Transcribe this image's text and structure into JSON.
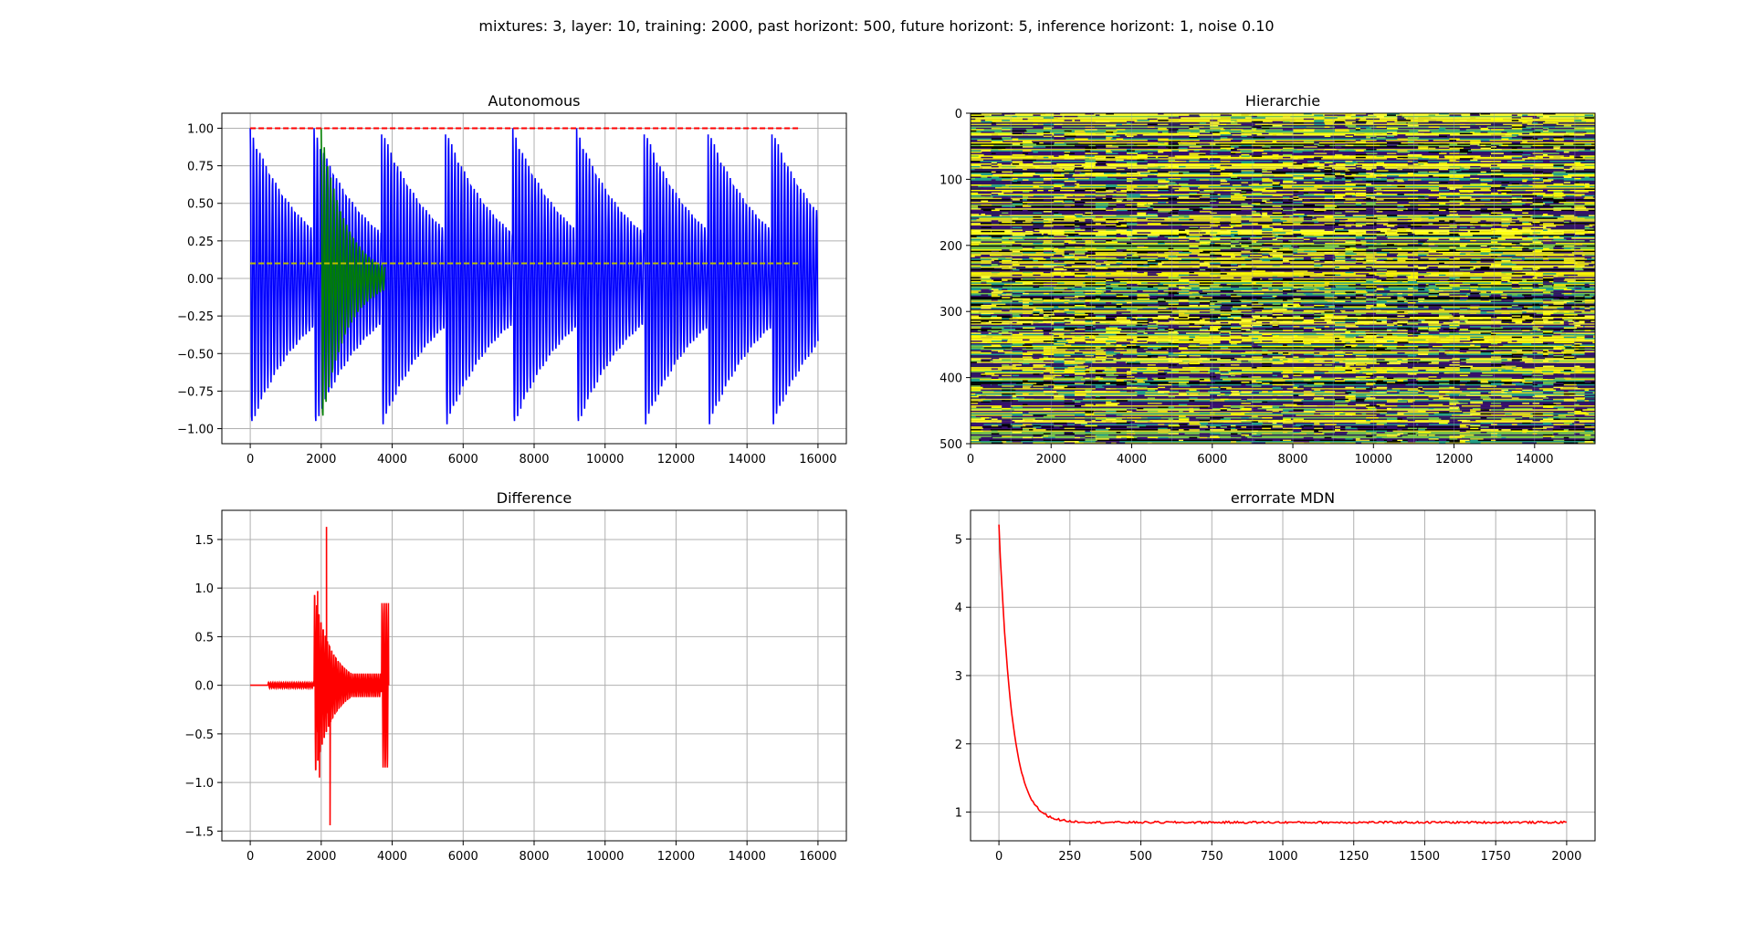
{
  "figure": {
    "suptitle": "mixtures: 3, layer: 10, training: 2000, past horizont: 500, future horizont: 5, inference horizont: 1, noise 0.10"
  },
  "colors": {
    "blue": "#0000ff",
    "green": "#008000",
    "red": "#ff0000",
    "yellow": "#bfbf00",
    "grid": "#b0b0b0"
  },
  "chart_data": [
    {
      "id": "autonomous",
      "type": "line",
      "title": "Autonomous",
      "xlabel": "",
      "ylabel": "",
      "xlim": [
        -800,
        16800
      ],
      "ylim": [
        -1.1,
        1.1
      ],
      "xticks": [
        0,
        2000,
        4000,
        6000,
        8000,
        10000,
        12000,
        14000,
        16000
      ],
      "yticks": [
        -1.0,
        -0.75,
        -0.5,
        -0.25,
        0.0,
        0.25,
        0.5,
        0.75,
        1.0
      ],
      "ytick_labels": [
        "−1.00",
        "−0.75",
        "−0.50",
        "−0.25",
        "0.00",
        "0.25",
        "0.50",
        "0.75",
        "1.00"
      ],
      "grid": true,
      "series": [
        {
          "color": "#0000ff",
          "kind": "decaying_bursts",
          "bursts": [
            0,
            1800,
            3700,
            5500,
            7400,
            9200,
            11100,
            12900,
            14700
          ],
          "x_end": 16000,
          "amplitude": 1.0,
          "period": 90,
          "decay": 1600,
          "floor": 0.05
        },
        {
          "color": "#008000",
          "kind": "decaying_bursts",
          "bursts": [
            2000
          ],
          "x_end": 3800,
          "amplitude": 1.0,
          "period": 90,
          "decay": 700,
          "floor": 0.0
        },
        {
          "color": "#ff0000",
          "kind": "dashed",
          "x": [
            0,
            15500
          ],
          "y": [
            1.0,
            1.0
          ]
        },
        {
          "color": "#bfbf00",
          "kind": "dashed",
          "x": [
            0,
            15500
          ],
          "y": [
            0.1,
            0.1
          ]
        }
      ]
    },
    {
      "id": "hierarchie",
      "type": "heatmap",
      "title": "Hierarchie",
      "xlim": [
        0,
        15500
      ],
      "ylim": [
        500,
        0
      ],
      "xticks": [
        0,
        2000,
        4000,
        6000,
        8000,
        10000,
        12000,
        14000
      ],
      "yticks": [
        0,
        100,
        200,
        300,
        400,
        500
      ],
      "palette": [
        "#ffff00",
        "#e8e010",
        "#2a1e5c",
        "#33106a",
        "#1f9e89",
        "#77c34a",
        "#ffff33",
        "#3b0f70",
        "#d6d02a",
        "#000000"
      ]
    },
    {
      "id": "difference",
      "type": "line",
      "title": "Difference",
      "xlabel": "",
      "ylabel": "",
      "xlim": [
        -800,
        16800
      ],
      "ylim": [
        -1.6,
        1.8
      ],
      "xticks": [
        0,
        2000,
        4000,
        6000,
        8000,
        10000,
        12000,
        14000,
        16000
      ],
      "yticks": [
        -1.5,
        -1.0,
        -0.5,
        0.0,
        0.5,
        1.0,
        1.5
      ],
      "ytick_labels": [
        "−1.5",
        "−1.0",
        "−0.5",
        "0.0",
        "0.5",
        "1.0",
        "1.5"
      ],
      "grid": true,
      "series": [
        {
          "color": "#ff0000",
          "kind": "difference",
          "segments": [
            {
              "x0": 0,
              "x1": 500,
              "amp": 0.0
            },
            {
              "x0": 500,
              "x1": 1800,
              "amp": 0.03
            },
            {
              "x0": 1800,
              "x1": 3700,
              "amp": 1.0,
              "decay": 500,
              "floor": 0.12
            },
            {
              "x0": 3700,
              "x1": 3900,
              "amp": 0.85
            }
          ],
          "peaks": [
            [
              2150,
              1.63
            ],
            [
              2250,
              -1.44
            ],
            [
              1900,
              0.97
            ],
            [
              1950,
              -0.95
            ]
          ],
          "period": 60
        }
      ]
    },
    {
      "id": "errorrate",
      "type": "line",
      "title": "errorrate MDN",
      "xlabel": "",
      "ylabel": "",
      "xlim": [
        -100,
        2100
      ],
      "ylim": [
        0.58,
        5.42
      ],
      "xticks": [
        0,
        250,
        500,
        750,
        1000,
        1250,
        1500,
        1750,
        2000
      ],
      "yticks": [
        1,
        2,
        3,
        4,
        5
      ],
      "grid": true,
      "series": [
        {
          "color": "#ff0000",
          "kind": "exp_decay",
          "x_start": 0,
          "x_end": 2000,
          "y_start": 5.2,
          "y_floor": 0.85,
          "tau": 45,
          "noise": 0.015
        }
      ]
    }
  ]
}
